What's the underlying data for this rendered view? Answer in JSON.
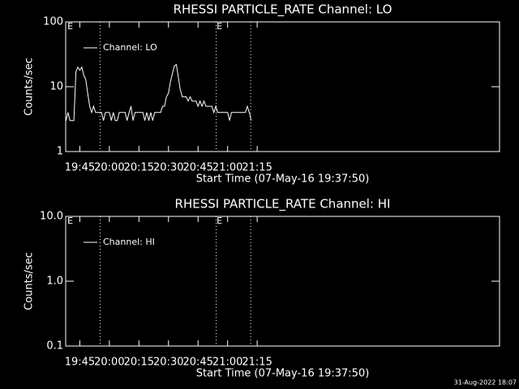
{
  "chart_data": [
    {
      "type": "line",
      "title": "RHESSI PARTICLE_RATE Channel: LO",
      "x_label": "Start Time (07-May-16 19:37:50)",
      "y_label": "Counts/sec",
      "log_y": true,
      "xlim": [
        1177.83,
        1398
      ],
      "ylim": [
        1,
        100
      ],
      "xticks": [
        {
          "value": 1185,
          "label": "19:45"
        },
        {
          "value": 1200,
          "label": "20:00"
        },
        {
          "value": 1215,
          "label": "20:15"
        },
        {
          "value": 1230,
          "label": "20:30"
        },
        {
          "value": 1245,
          "label": "20:45"
        },
        {
          "value": 1260,
          "label": "21:00"
        },
        {
          "value": 1275,
          "label": "21:15"
        }
      ],
      "yticks": [
        1,
        10,
        100
      ],
      "vlines": [
        1195.3,
        1254.2,
        1271.7
      ],
      "markers": [
        {
          "x": 1178.5,
          "label": "E"
        },
        {
          "x": 1254.2,
          "label": "E"
        }
      ],
      "x": [
        1178,
        1179,
        1180,
        1181,
        1182,
        1183,
        1184,
        1185,
        1186,
        1187,
        1188,
        1189,
        1190,
        1191,
        1192,
        1193,
        1194,
        1195,
        1196,
        1197,
        1198,
        1199,
        1200,
        1201,
        1202,
        1203,
        1204,
        1205,
        1206,
        1207,
        1208,
        1209,
        1210,
        1211,
        1212,
        1213,
        1214,
        1215,
        1216,
        1217,
        1218,
        1219,
        1220,
        1221,
        1222,
        1223,
        1224,
        1225,
        1226,
        1227,
        1228,
        1229,
        1230,
        1231,
        1232,
        1233,
        1234,
        1235,
        1236,
        1237,
        1238,
        1239,
        1240,
        1241,
        1242,
        1243,
        1244,
        1245,
        1246,
        1247,
        1248,
        1249,
        1250,
        1251,
        1252,
        1253,
        1254,
        1255,
        1256,
        1257,
        1258,
        1259,
        1260,
        1261,
        1262,
        1263,
        1264,
        1265,
        1266,
        1267,
        1268,
        1269,
        1270,
        1271,
        1272
      ],
      "series": [
        {
          "name": "Channel: LO",
          "color": "#ffffff",
          "values": [
            3,
            4,
            3,
            3,
            3,
            17,
            20,
            18,
            20,
            15,
            13,
            8,
            5,
            4,
            5,
            4,
            4,
            4,
            4,
            3,
            4,
            4,
            4,
            3,
            4,
            3,
            3,
            4,
            4,
            4,
            4,
            3,
            4,
            5,
            3,
            4,
            4,
            4,
            4,
            4,
            3,
            4,
            3,
            4,
            3,
            4,
            4,
            4,
            4,
            5,
            5,
            7,
            8,
            12,
            16,
            21,
            22,
            14,
            9,
            7,
            7,
            7,
            6,
            7,
            6,
            6,
            6,
            5,
            6,
            5,
            6,
            5,
            5,
            5,
            5,
            4,
            5,
            4,
            4,
            4,
            4,
            4,
            4,
            3,
            4,
            4,
            4,
            4,
            4,
            4,
            4,
            4,
            5,
            4,
            3
          ]
        }
      ],
      "legend": "upper left"
    },
    {
      "type": "line",
      "title": "RHESSI PARTICLE_RATE Channel: HI",
      "x_label": "Start Time (07-May-16 19:37:50)",
      "y_label": "Counts/sec",
      "log_y": true,
      "xlim": [
        1177.83,
        1398
      ],
      "ylim": [
        0.1,
        10
      ],
      "xticks": [
        {
          "value": 1185,
          "label": "19:45"
        },
        {
          "value": 1200,
          "label": "20:00"
        },
        {
          "value": 1215,
          "label": "20:15"
        },
        {
          "value": 1230,
          "label": "20:30"
        },
        {
          "value": 1245,
          "label": "20:45"
        },
        {
          "value": 1260,
          "label": "21:00"
        },
        {
          "value": 1275,
          "label": "21:15"
        }
      ],
      "yticks": [
        {
          "value": 0.1,
          "label": "0.1"
        },
        {
          "value": 1,
          "label": "1.0"
        },
        {
          "value": 10,
          "label": "10.0"
        }
      ],
      "vlines": [
        1195.3,
        1254.2,
        1271.7
      ],
      "markers": [
        {
          "x": 1178.5,
          "label": "E"
        },
        {
          "x": 1254.2,
          "label": "E"
        }
      ],
      "x": [],
      "series": [
        {
          "name": "Channel: HI",
          "color": "#ffffff",
          "values": []
        }
      ],
      "legend": "upper left"
    }
  ],
  "footer": "31-Aug-2022 18:07"
}
